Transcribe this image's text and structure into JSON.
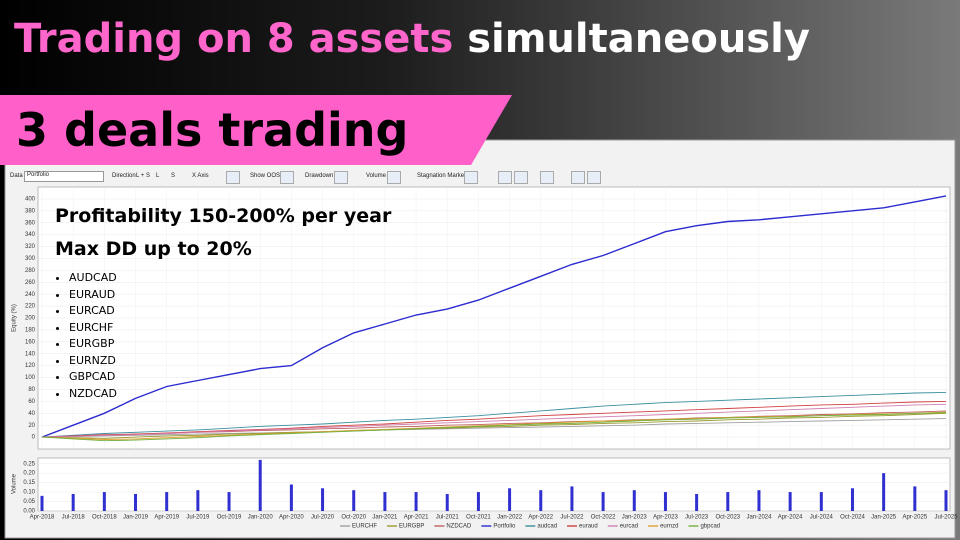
{
  "header": {
    "title_highlight": "Trading on 8 assets",
    "title_rest": "simultaneously",
    "banner": "3 deals trading"
  },
  "toolbar": {
    "data": "Data",
    "portfolio": "Portfolio",
    "direction": "Direction",
    "ls": "L + S",
    "l": "L",
    "s": "S",
    "x_axis": "X Axis",
    "show_oos": "Show OOS",
    "drawdown": "Drawdown",
    "volume": "Volume",
    "stagnation": "Stagnation Marker"
  },
  "overlay": {
    "lines": [
      "Profitability 150-200% per year",
      "Max DD up to 20%"
    ],
    "assets": [
      "AUDCAD",
      "EURAUD",
      "EURCAD",
      "EURCHF",
      "EURGBP",
      "EURNZD",
      "GBPCAD",
      "NZDCAD"
    ]
  },
  "chart_data": {
    "type": "line",
    "ylabel": "Equity (%)",
    "y2label": "Volume",
    "grid": true,
    "categories": [
      "Apr-2018",
      "Jul-2018",
      "Oct-2018",
      "Jan-2019",
      "Apr-2019",
      "Jul-2019",
      "Oct-2019",
      "Jan-2020",
      "Apr-2020",
      "Jul-2020",
      "Oct-2020",
      "Jan-2021",
      "Apr-2021",
      "Jul-2021",
      "Oct-2021",
      "Jan-2022",
      "Apr-2022",
      "Jul-2022",
      "Oct-2022",
      "Jan-2023",
      "Apr-2023",
      "Jul-2023",
      "Oct-2023",
      "Jan-2024",
      "Apr-2024",
      "Jul-2024",
      "Oct-2024",
      "Jan-2025",
      "Apr-2025",
      "Jul-2025"
    ],
    "ylim": [
      -20,
      420
    ],
    "yticks": [
      0,
      20,
      40,
      60,
      80,
      100,
      120,
      140,
      160,
      180,
      200,
      220,
      240,
      260,
      280,
      300,
      320,
      340,
      360,
      380,
      400
    ],
    "series": [
      {
        "name": "EURCHF",
        "color": "#a0a0a0",
        "values": [
          0,
          1,
          2,
          3,
          4,
          5,
          6,
          7,
          8,
          9,
          10,
          12,
          13,
          14,
          15,
          16,
          17,
          18,
          19,
          20,
          22,
          23,
          24,
          25,
          26,
          27,
          28,
          29,
          30,
          31
        ]
      },
      {
        "name": "EURGBP",
        "color": "#9a9a30",
        "values": [
          0,
          -1,
          -2,
          0,
          2,
          3,
          5,
          6,
          8,
          9,
          11,
          12,
          14,
          15,
          17,
          18,
          20,
          21,
          23,
          24,
          26,
          27,
          29,
          30,
          32,
          33,
          35,
          36,
          38,
          40
        ]
      },
      {
        "name": "NZDCAD",
        "color": "#c06060",
        "values": [
          0,
          2,
          3,
          5,
          6,
          8,
          9,
          11,
          12,
          14,
          15,
          17,
          18,
          20,
          21,
          23,
          24,
          26,
          27,
          29,
          30,
          32,
          33,
          35,
          36,
          38,
          39,
          41,
          42,
          44
        ]
      },
      {
        "name": "Portfolio",
        "color": "#2b2bd0",
        "values": [
          0,
          20,
          40,
          65,
          85,
          95,
          105,
          115,
          120,
          150,
          175,
          190,
          205,
          215,
          230,
          250,
          270,
          290,
          305,
          325,
          345,
          355,
          362,
          365,
          370,
          375,
          380,
          385,
          395,
          405
        ]
      },
      {
        "name": "audcad",
        "color": "#3a8fa0",
        "values": [
          0,
          3,
          6,
          8,
          10,
          12,
          15,
          18,
          20,
          22,
          25,
          28,
          30,
          33,
          36,
          40,
          44,
          48,
          52,
          55,
          58,
          60,
          62,
          64,
          66,
          68,
          70,
          72,
          74,
          75
        ]
      },
      {
        "name": "euraud",
        "color": "#d04040",
        "values": [
          0,
          2,
          4,
          5,
          7,
          9,
          11,
          13,
          15,
          18,
          20,
          22,
          25,
          28,
          30,
          33,
          36,
          38,
          40,
          42,
          44,
          46,
          48,
          50,
          52,
          54,
          55,
          57,
          59,
          60
        ]
      },
      {
        "name": "eurcad",
        "color": "#d080b0",
        "values": [
          0,
          1,
          3,
          4,
          6,
          8,
          10,
          12,
          14,
          16,
          18,
          20,
          22,
          24,
          26,
          28,
          30,
          32,
          34,
          36,
          38,
          40,
          42,
          44,
          46,
          48,
          50,
          52,
          54,
          55
        ]
      },
      {
        "name": "eurnzd",
        "color": "#e0a030",
        "values": [
          0,
          -2,
          -4,
          -3,
          -1,
          1,
          3,
          5,
          7,
          9,
          11,
          13,
          15,
          17,
          19,
          21,
          23,
          25,
          27,
          28,
          30,
          31,
          33,
          34,
          35,
          36,
          38,
          39,
          40,
          42
        ]
      },
      {
        "name": "gbpcad",
        "color": "#70b040",
        "values": [
          0,
          -3,
          -6,
          -5,
          -3,
          -1,
          2,
          4,
          6,
          8,
          10,
          12,
          14,
          16,
          18,
          20,
          22,
          23,
          25,
          27,
          29,
          30,
          32,
          33,
          34,
          36,
          37,
          38,
          40,
          41
        ]
      }
    ],
    "volume": {
      "color": "#3030d0",
      "values": [
        0.08,
        0.09,
        0.1,
        0.09,
        0.1,
        0.11,
        0.1,
        0.27,
        0.14,
        0.12,
        0.11,
        0.1,
        0.1,
        0.09,
        0.1,
        0.12,
        0.11,
        0.13,
        0.1,
        0.11,
        0.1,
        0.09,
        0.1,
        0.11,
        0.1,
        0.1,
        0.12,
        0.2,
        0.13,
        0.11
      ]
    },
    "y2lim": [
      0,
      0.28
    ],
    "y2ticks": [
      {
        "value": 0,
        "label": "0.00"
      },
      {
        "value": 0.05,
        "label": "0.05"
      },
      {
        "value": 0.1,
        "label": "0.10"
      },
      {
        "value": 0.15,
        "label": "0.15"
      },
      {
        "value": 0.2,
        "label": "0.20"
      },
      {
        "value": 0.25,
        "label": "0.25"
      }
    ]
  }
}
